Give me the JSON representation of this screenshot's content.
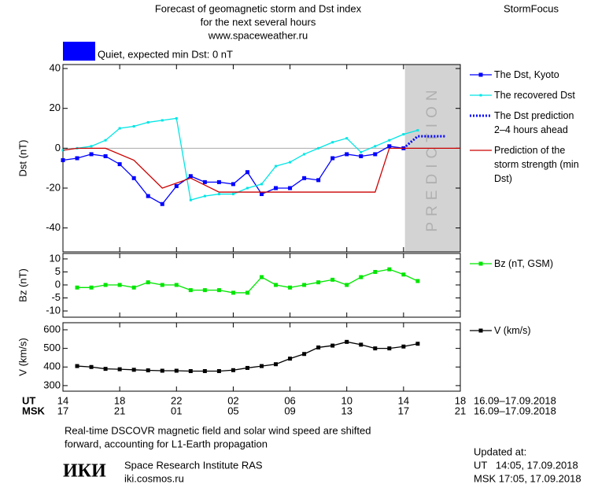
{
  "header": {
    "title": [
      "Forecast of geomagnetic storm and Dst index",
      "for the next several hours",
      "www.spaceweather.ru"
    ],
    "brand": "StormFocus",
    "status": "Quiet, expected min Dst: 0 nT",
    "status_color": "#0000ff"
  },
  "chart_data": [
    {
      "type": "line",
      "ylabel": "Dst (nT)",
      "xlim": [
        14,
        42
      ],
      "ylim": [
        -52,
        42
      ],
      "yticks": [
        40,
        20,
        0,
        -20,
        -40
      ],
      "zero_line": 0,
      "prediction_region": [
        38.1,
        42
      ],
      "prediction_label": "PREDICTION",
      "series": [
        {
          "name": "The Dst, Kyoto",
          "color": "#0000ff",
          "marker": "square",
          "line_style": "solid",
          "x": [
            14,
            15,
            16,
            17,
            18,
            19,
            20,
            21,
            22,
            23,
            24,
            25,
            26,
            27,
            28,
            29,
            30,
            31,
            32,
            33,
            34,
            35,
            36,
            37,
            38
          ],
          "values": [
            -6,
            -5,
            -3,
            -4,
            -8,
            -15,
            -24,
            -28,
            -19,
            -14,
            -17,
            -17,
            -18,
            -12,
            -23,
            -20,
            -20,
            -15,
            -16,
            -5,
            -3,
            -4,
            -3,
            1,
            0
          ]
        },
        {
          "name": "The recovered Dst",
          "color": "#00e5e5",
          "marker": "small-square",
          "line_style": "solid",
          "x": [
            14,
            15,
            16,
            17,
            18,
            19,
            20,
            21,
            22,
            23,
            24,
            25,
            26,
            27,
            28,
            29,
            30,
            31,
            32,
            33,
            34,
            35,
            36,
            37,
            38,
            39
          ],
          "values": [
            -1,
            0,
            1,
            4,
            10,
            11,
            13,
            14,
            15,
            -26,
            -24,
            -23,
            -23,
            -20,
            -18,
            -9,
            -7,
            -3,
            0,
            3,
            5,
            -2,
            1,
            4,
            7,
            9
          ]
        },
        {
          "name": "The Dst prediction 2–4 hours ahead",
          "color": "#0000ff",
          "marker": "none",
          "line_style": "dotted",
          "x": [
            38,
            39,
            41
          ],
          "values": [
            0,
            6,
            6
          ]
        },
        {
          "name": "Prediction of the storm strength (min Dst)",
          "color": "#cc0000",
          "marker": "none",
          "line_style": "solid",
          "x": [
            14,
            15,
            17,
            19,
            21,
            23,
            25,
            36,
            37,
            42
          ],
          "values": [
            -1,
            0,
            0,
            -6,
            -20,
            -15,
            -22,
            -22,
            0,
            0
          ]
        }
      ]
    },
    {
      "type": "line",
      "ylabel": "Bz (nT)",
      "xlim": [
        14,
        42
      ],
      "ylim": [
        -12.4,
        12.1
      ],
      "yticks": [
        10,
        5,
        0,
        -5,
        -10
      ],
      "series": [
        {
          "name": "Bz (nT, GSM)",
          "color": "#00e600",
          "marker": "square",
          "line_style": "solid",
          "x": [
            15,
            16,
            17,
            18,
            19,
            20,
            21,
            22,
            23,
            24,
            25,
            26,
            27,
            28,
            29,
            30,
            31,
            32,
            33,
            34,
            35,
            36,
            37,
            38,
            39
          ],
          "values": [
            -1,
            -1,
            0,
            0,
            -1,
            1,
            0,
            0,
            -2,
            -2,
            -2,
            -3,
            -3,
            3,
            0,
            -1,
            0,
            1,
            2,
            0,
            3,
            5,
            6,
            4,
            1.5
          ]
        }
      ]
    },
    {
      "type": "line",
      "ylabel": "V (km/s)",
      "xlim": [
        14,
        42
      ],
      "ylim": [
        270,
        638
      ],
      "yticks": [
        600,
        500,
        400,
        300
      ],
      "xticks": [
        14,
        18,
        22,
        {
          "value": 26,
          "label": "02"
        },
        {
          "value": 30,
          "label": "06"
        },
        {
          "value": 34,
          "label": "10"
        },
        {
          "value": 38,
          "label": "14"
        },
        {
          "value": 42,
          "label": "18"
        }
      ],
      "msk_ticks": [
        {
          "value": 14,
          "label": "17"
        },
        {
          "value": 18,
          "label": "21"
        },
        {
          "value": 22,
          "label": "01"
        },
        {
          "value": 26,
          "label": "05"
        },
        {
          "value": 30,
          "label": "09"
        },
        {
          "value": 34,
          "label": "13"
        },
        {
          "value": 38,
          "label": "17"
        },
        {
          "value": 42,
          "label": "21"
        }
      ],
      "ut_label": "UT",
      "msk_label": "MSK",
      "date_range": "16.09–17.09.2018",
      "series": [
        {
          "name": "V (km/s)",
          "color": "#000000",
          "marker": "square",
          "line_style": "solid",
          "x": [
            15,
            16,
            17,
            18,
            19,
            20,
            21,
            22,
            23,
            24,
            25,
            26,
            27,
            28,
            29,
            30,
            31,
            32,
            33,
            34,
            35,
            36,
            37,
            38,
            39
          ],
          "values": [
            405,
            400,
            390,
            388,
            385,
            382,
            380,
            380,
            378,
            378,
            378,
            383,
            395,
            405,
            415,
            445,
            470,
            505,
            515,
            535,
            520,
            500,
            500,
            510,
            525
          ]
        }
      ]
    }
  ],
  "footer": {
    "note": [
      "Real-time DSCOVR magnetic field and solar wind speed are shifted",
      "forward, accounting for L1-Earth propagation"
    ],
    "logo": "ИКИ",
    "institute": "Space Research Institute RAS",
    "url": "iki.cosmos.ru",
    "updated": [
      "Updated at:",
      "UT   14:05, 17.09.2018",
      "MSK 17:05, 17.09.2018"
    ]
  }
}
